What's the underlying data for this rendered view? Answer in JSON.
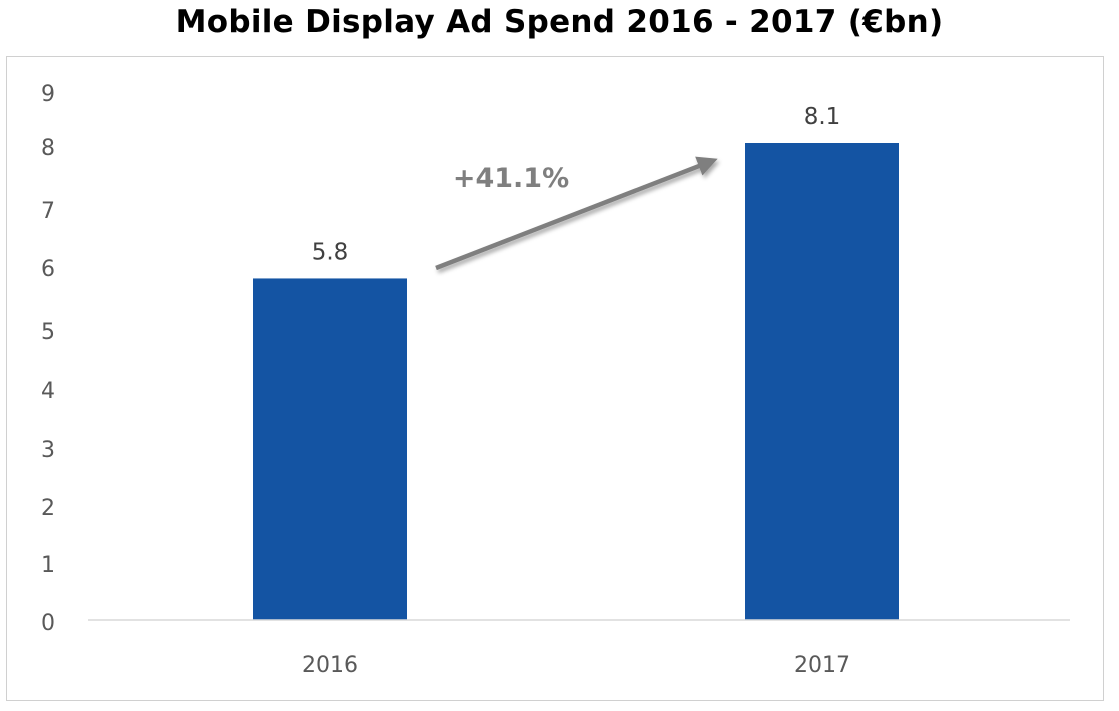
{
  "chart_data": {
    "type": "bar",
    "title": "Mobile Display Ad Spend 2016 - 2017 (€bn)",
    "categories": [
      "2016",
      "2017"
    ],
    "values": [
      5.8,
      8.1
    ],
    "data_labels": [
      "5.8",
      "8.1"
    ],
    "xlabel": "",
    "ylabel": "",
    "ylim": [
      0,
      9
    ],
    "yticks": [
      "0",
      "1",
      "2",
      "3",
      "4",
      "5",
      "6",
      "7",
      "8",
      "9"
    ],
    "grid": false,
    "legend": "none",
    "bar_color": "#1454a3",
    "annotation": {
      "text": "+41.1%",
      "type": "arrow",
      "from": "2016",
      "to": "2017",
      "color": "#7f7f7f"
    }
  }
}
